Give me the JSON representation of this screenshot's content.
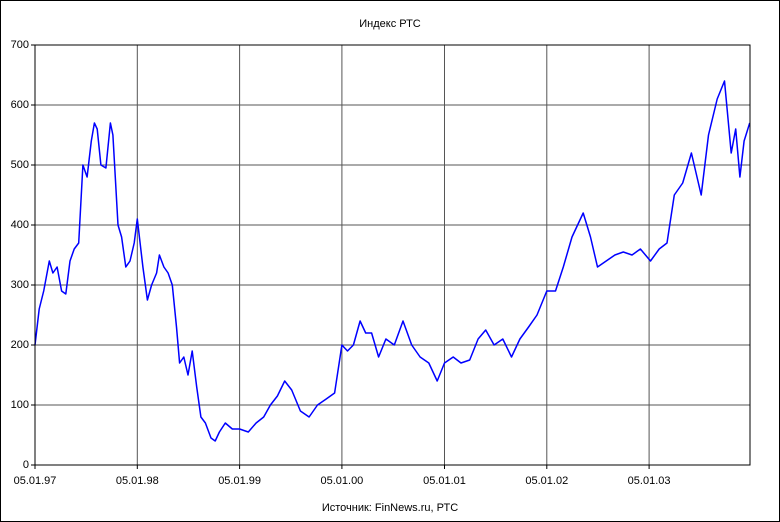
{
  "chart_data": {
    "type": "line",
    "title": "Индекс РТС",
    "source": "Источник: FinNews.ru, РТС",
    "x": [
      "1997-01-05",
      "1997-01-20",
      "1997-02-05",
      "1997-02-25",
      "1997-03-10",
      "1997-03-25",
      "1997-04-10",
      "1997-04-25",
      "1997-05-10",
      "1997-05-25",
      "1997-06-10",
      "1997-06-25",
      "1997-07-10",
      "1997-07-25",
      "1997-08-05",
      "1997-08-15",
      "1997-08-28",
      "1997-09-15",
      "1997-10-01",
      "1997-10-10",
      "1997-10-28",
      "1997-11-10",
      "1997-11-25",
      "1997-12-10",
      "1997-12-25",
      "1998-01-05",
      "1998-01-25",
      "1998-02-10",
      "1998-02-25",
      "1998-03-15",
      "1998-03-25",
      "1998-04-10",
      "1998-04-25",
      "1998-05-10",
      "1998-05-25",
      "1998-06-05",
      "1998-06-20",
      "1998-07-05",
      "1998-07-20",
      "1998-08-05",
      "1998-08-20",
      "1998-09-05",
      "1998-09-25",
      "1998-10-10",
      "1998-10-25",
      "1998-11-15",
      "1998-12-10",
      "1999-01-05",
      "1999-02-05",
      "1999-03-05",
      "1999-04-01",
      "1999-04-25",
      "1999-05-20",
      "1999-06-15",
      "1999-07-10",
      "1999-08-10",
      "1999-09-10",
      "1999-10-10",
      "1999-11-10",
      "1999-12-10",
      "2000-01-05",
      "2000-01-25",
      "2000-02-15",
      "2000-03-10",
      "2000-03-30",
      "2000-04-20",
      "2000-05-15",
      "2000-06-10",
      "2000-07-10",
      "2000-08-10",
      "2000-09-10",
      "2000-10-10",
      "2000-11-10",
      "2000-12-10",
      "2001-01-05",
      "2001-02-05",
      "2001-03-05",
      "2001-04-05",
      "2001-05-05",
      "2001-06-01",
      "2001-07-01",
      "2001-08-01",
      "2001-09-01",
      "2001-10-01",
      "2001-11-01",
      "2001-12-01",
      "2002-01-05",
      "2002-02-05",
      "2002-03-05",
      "2002-04-05",
      "2002-04-25",
      "2002-05-15",
      "2002-06-10",
      "2002-07-05",
      "2002-08-05",
      "2002-09-05",
      "2002-10-05",
      "2002-11-05",
      "2002-12-05",
      "2003-01-10",
      "2003-02-10",
      "2003-03-10",
      "2003-04-05",
      "2003-05-05",
      "2003-06-05",
      "2003-07-10",
      "2003-08-05",
      "2003-09-05",
      "2003-10-01",
      "2003-10-25",
      "2003-11-10",
      "2003-11-25",
      "2003-12-10",
      "2003-12-30"
    ],
    "series": [
      {
        "name": "РТС",
        "color": "#0000ff",
        "values": [
          200,
          260,
          290,
          340,
          320,
          330,
          290,
          285,
          340,
          360,
          370,
          500,
          480,
          540,
          570,
          560,
          500,
          495,
          570,
          550,
          400,
          380,
          330,
          340,
          370,
          410,
          330,
          275,
          300,
          320,
          350,
          330,
          320,
          300,
          230,
          170,
          180,
          150,
          190,
          130,
          80,
          70,
          45,
          40,
          55,
          70,
          60,
          60,
          55,
          70,
          80,
          100,
          115,
          140,
          125,
          90,
          80,
          100,
          110,
          120,
          200,
          190,
          200,
          240,
          220,
          220,
          180,
          210,
          200,
          240,
          200,
          180,
          170,
          140,
          170,
          180,
          170,
          175,
          210,
          225,
          200,
          210,
          180,
          210,
          230,
          250,
          290,
          290,
          330,
          380,
          400,
          420,
          380,
          330,
          340,
          350,
          355,
          350,
          360,
          340,
          360,
          370,
          450,
          470,
          520,
          450,
          550,
          610,
          640,
          520,
          560,
          480,
          540,
          570
        ]
      }
    ],
    "xlim": [
      "1997-01-05",
      "2003-12-31"
    ],
    "xticks": [
      {
        "value": "1997-01-05",
        "label": "05.01.97"
      },
      {
        "value": "1998-01-05",
        "label": "05.01.98"
      },
      {
        "value": "1999-01-05",
        "label": "05.01.99"
      },
      {
        "value": "2000-01-05",
        "label": "05.01.00"
      },
      {
        "value": "2001-01-05",
        "label": "05.01.01"
      },
      {
        "value": "2002-01-05",
        "label": "05.01.02"
      },
      {
        "value": "2003-01-05",
        "label": "05.01.03"
      }
    ],
    "ylim": [
      0,
      700
    ],
    "yticks": [
      0,
      100,
      200,
      300,
      400,
      500,
      600,
      700
    ],
    "grid": true
  }
}
